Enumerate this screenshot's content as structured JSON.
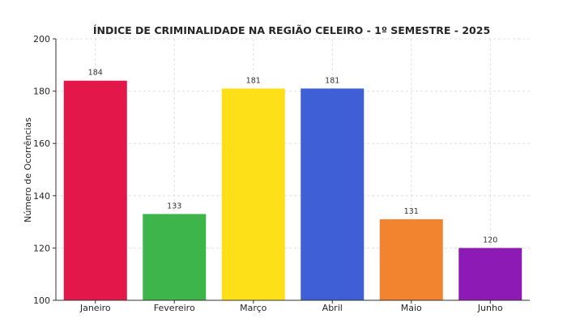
{
  "chart_data": {
    "type": "bar",
    "title": "ÍNDICE DE CRIMINALIDADE NA REGIÃO CELEIRO - 1º SEMESTRE - 2025",
    "xlabel": "",
    "ylabel": "Número de Ocorrências",
    "categories": [
      "Janeiro",
      "Fevereiro",
      "Março",
      "Abril",
      "Maio",
      "Junho"
    ],
    "values": [
      184,
      133,
      181,
      181,
      131,
      120
    ],
    "data_labels": [
      "184",
      "133",
      "181",
      "181",
      "131",
      "120"
    ],
    "colors": [
      "#e3174a",
      "#3db54a",
      "#fde017",
      "#3e5fd6",
      "#f2832f",
      "#8e1ab5"
    ],
    "ylim": [
      100,
      200
    ],
    "yticks": [
      100,
      120,
      140,
      160,
      180,
      200
    ],
    "grid": true,
    "legend": "none"
  }
}
